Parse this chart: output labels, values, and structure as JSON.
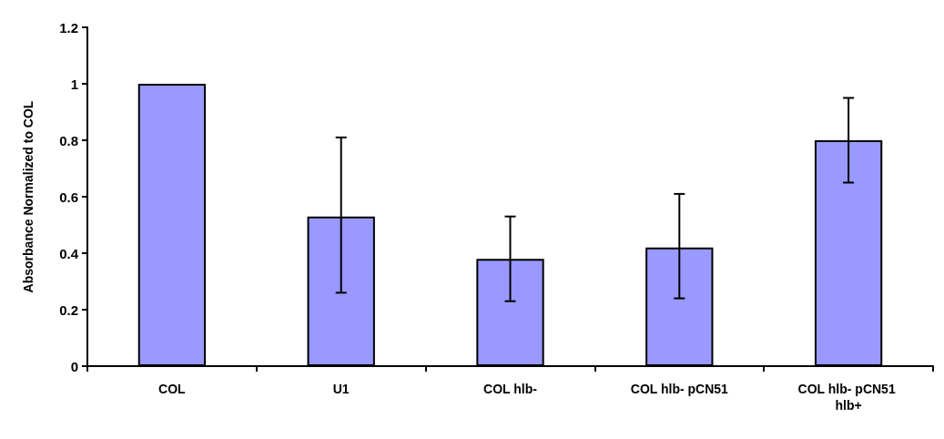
{
  "chart_data": {
    "type": "bar",
    "ylabel": "Absorbance Normalized to COL",
    "categories": [
      "COL",
      "U1",
      "COL hlb-",
      "COL hlb- pCN51",
      "COL hlb- pCN51 hlb+"
    ],
    "values": [
      1.0,
      0.53,
      0.38,
      0.42,
      0.8
    ],
    "errors": [
      null,
      [
        0.26,
        0.81
      ],
      [
        0.23,
        0.53
      ],
      [
        0.24,
        0.61
      ],
      [
        0.65,
        0.95
      ]
    ],
    "color": "#9999ff",
    "ylim": [
      0,
      1.2
    ],
    "yticks": [
      0,
      0.2,
      0.4,
      0.6,
      0.8,
      1,
      1.2
    ],
    "grid": false
  }
}
